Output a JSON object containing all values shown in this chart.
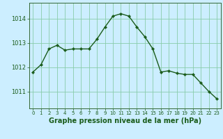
{
  "x": [
    0,
    1,
    2,
    3,
    4,
    5,
    6,
    7,
    8,
    9,
    10,
    11,
    12,
    13,
    14,
    15,
    16,
    17,
    18,
    19,
    20,
    21,
    22,
    23
  ],
  "y": [
    1011.8,
    1012.1,
    1012.75,
    1012.9,
    1012.7,
    1012.75,
    1012.75,
    1012.75,
    1013.15,
    1013.65,
    1014.1,
    1014.2,
    1014.1,
    1013.65,
    1013.25,
    1012.75,
    1011.8,
    1011.85,
    1011.75,
    1011.7,
    1011.7,
    1011.35,
    1011.0,
    1010.7
  ],
  "line_color": "#1a5c1a",
  "marker": "D",
  "marker_size": 2.2,
  "line_width": 1.0,
  "background_color": "#cceeff",
  "grid_color": "#88ccaa",
  "xlabel": "Graphe pression niveau de la mer (hPa)",
  "xlabel_fontsize": 7,
  "ylabel_ticks": [
    1011,
    1012,
    1013,
    1014
  ],
  "ylim": [
    1010.3,
    1014.65
  ],
  "xlim": [
    -0.5,
    23.5
  ],
  "tick_color": "#1a5c1a",
  "tick_label_color": "#1a5c1a",
  "axes_color": "#336633",
  "xlabel_color": "#1a5c1a"
}
